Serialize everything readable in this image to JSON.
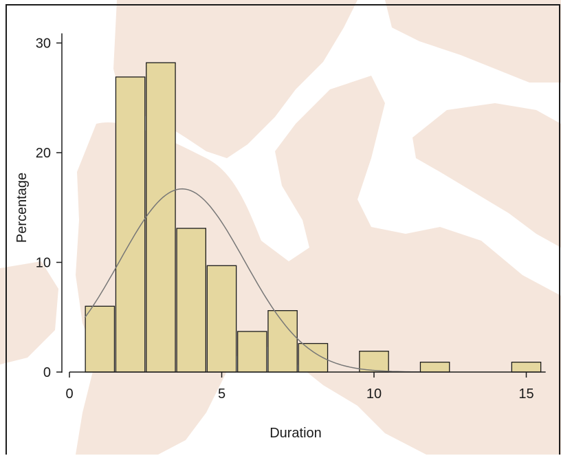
{
  "colors": {
    "background_shape": "#f5e6dc",
    "bar_fill": "#e5d79f",
    "bar_stroke": "#1a1a1a",
    "curve": "#777777",
    "axis": "#1a1a1a",
    "border": "#1a1a1a"
  },
  "chart_data": {
    "type": "bar",
    "subtype": "histogram with normal density overlay",
    "xlabel": "Duration",
    "ylabel": "Percentage",
    "xlim": [
      0,
      15.5
    ],
    "ylim": [
      0,
      30
    ],
    "x_ticks": [
      0,
      5,
      10,
      15
    ],
    "y_ticks": [
      0,
      10,
      20,
      30
    ],
    "grid": false,
    "legend": "none",
    "bins": [
      {
        "start": 0.5,
        "end": 1.5,
        "value": 6.0
      },
      {
        "start": 1.5,
        "end": 2.5,
        "value": 26.9
      },
      {
        "start": 2.5,
        "end": 3.5,
        "value": 28.2
      },
      {
        "start": 3.5,
        "end": 4.5,
        "value": 13.1
      },
      {
        "start": 4.5,
        "end": 5.5,
        "value": 9.7
      },
      {
        "start": 5.5,
        "end": 6.5,
        "value": 3.7
      },
      {
        "start": 6.5,
        "end": 7.5,
        "value": 5.6
      },
      {
        "start": 7.5,
        "end": 8.5,
        "value": 2.6
      },
      {
        "start": 9.5,
        "end": 10.5,
        "value": 1.9
      },
      {
        "start": 11.5,
        "end": 12.5,
        "value": 0.9
      },
      {
        "start": 14.5,
        "end": 15.5,
        "value": 0.9
      }
    ],
    "normal_curve": {
      "mean": 3.7,
      "sd": 2.05,
      "peak": 16.7,
      "x_range": [
        0.5,
        11.5
      ]
    }
  }
}
